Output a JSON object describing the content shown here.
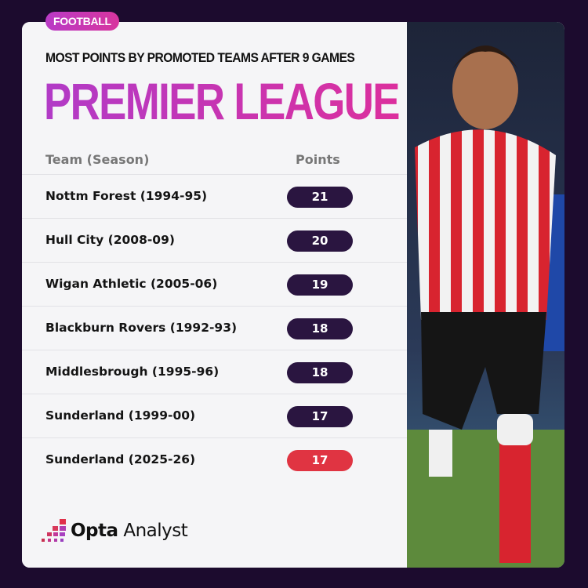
{
  "tag": "FOOTBALL",
  "subtitle": "MOST POINTS BY PROMOTED TEAMS AFTER 9 GAMES",
  "title": "PREMIER LEAGUE",
  "chart_data": {
    "type": "table",
    "columns": [
      "Team (Season)",
      "Points"
    ],
    "rows": [
      {
        "team": "Nottm Forest (1994-95)",
        "points": "21"
      },
      {
        "team": "Hull City (2008-09)",
        "points": "20"
      },
      {
        "team": "Wigan Athletic (2005-06)",
        "points": "19"
      },
      {
        "team": "Blackburn Rovers (1992-93)",
        "points": "18"
      },
      {
        "team": "Middlesbrough (1995-96)",
        "points": "18"
      },
      {
        "team": "Sunderland (1999-00)",
        "points": "17"
      },
      {
        "team": "Sunderland (2025-26)",
        "points": "17",
        "highlight": true
      }
    ]
  },
  "colors": {
    "background": "#1c0b2e",
    "pill": "#2a1540",
    "highlight": "#e03442",
    "accent": "#c637b6"
  },
  "logo": {
    "brand": "Opta",
    "product": "Analyst"
  }
}
